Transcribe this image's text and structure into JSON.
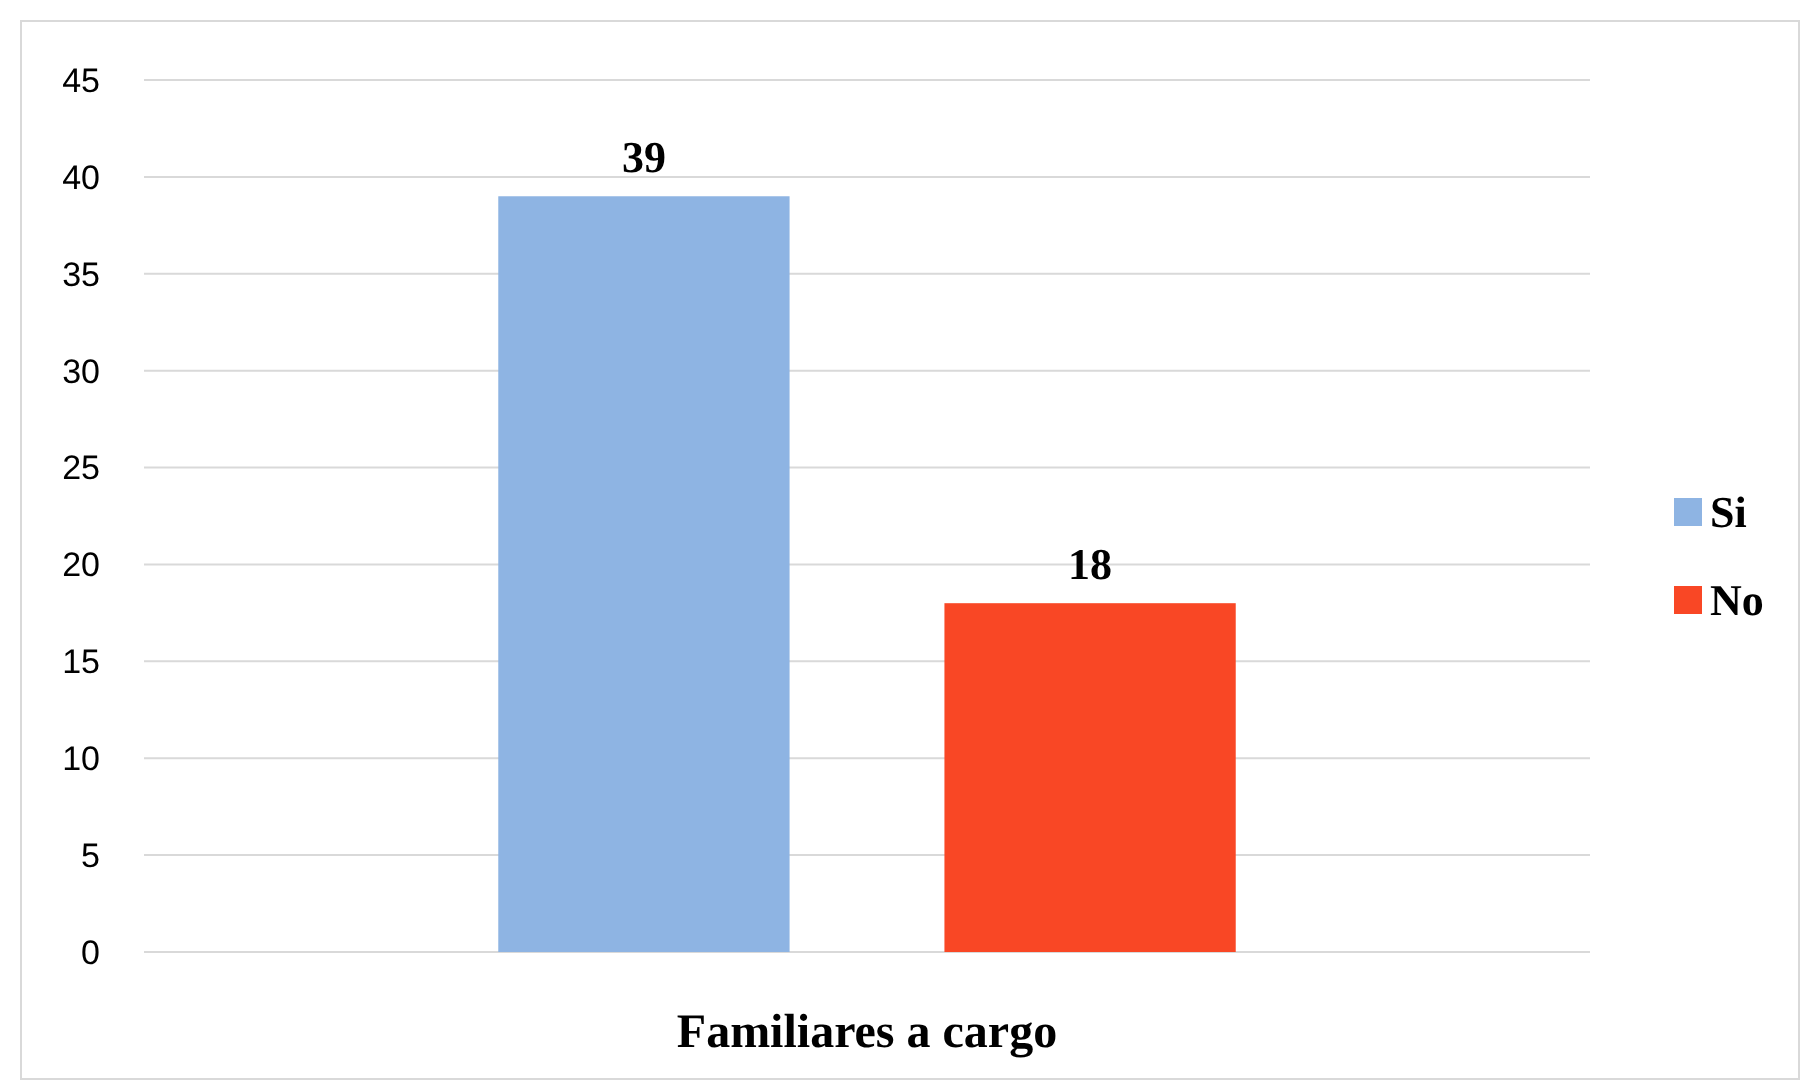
{
  "chart_data": {
    "type": "bar",
    "categories": [
      "Familiares a cargo"
    ],
    "series": [
      {
        "name": "Si",
        "color": "#8eb4e3",
        "values": [
          39
        ]
      },
      {
        "name": "No",
        "color": "#f94725",
        "values": [
          18
        ]
      }
    ],
    "ylim": [
      0,
      45
    ],
    "yticks": [
      0,
      5,
      10,
      15,
      20,
      25,
      30,
      35,
      40,
      45
    ],
    "grid": "y",
    "legend": "right",
    "data_labels": true
  }
}
